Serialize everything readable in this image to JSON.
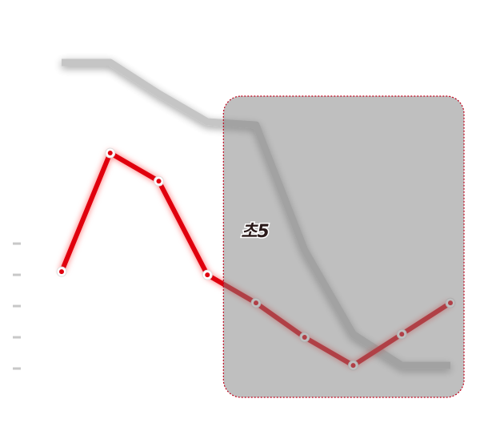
{
  "chart_data": {
    "type": "line",
    "categories": [
      null,
      null,
      null,
      null,
      null,
      null,
      null,
      null,
      null
    ],
    "series": [
      {
        "color": "#bbbbbb",
        "values": [
          10.8,
          10.8,
          9.8,
          8.9,
          8.8,
          4.8,
          2.1,
          1.1,
          1.1
        ]
      },
      {
        "color": "#e0000f",
        "values": [
          4.1,
          7.9,
          7.0,
          4.0,
          3.1,
          2.0,
          1.1,
          2.1,
          3.1
        ]
      }
    ],
    "ylim": [
      -1,
      12.8
    ],
    "yticks": [
      1,
      2,
      3,
      4,
      5
    ],
    "annotation": "초5",
    "highlight_range": [
      4,
      8
    ],
    "highlight_color": "#808080"
  }
}
